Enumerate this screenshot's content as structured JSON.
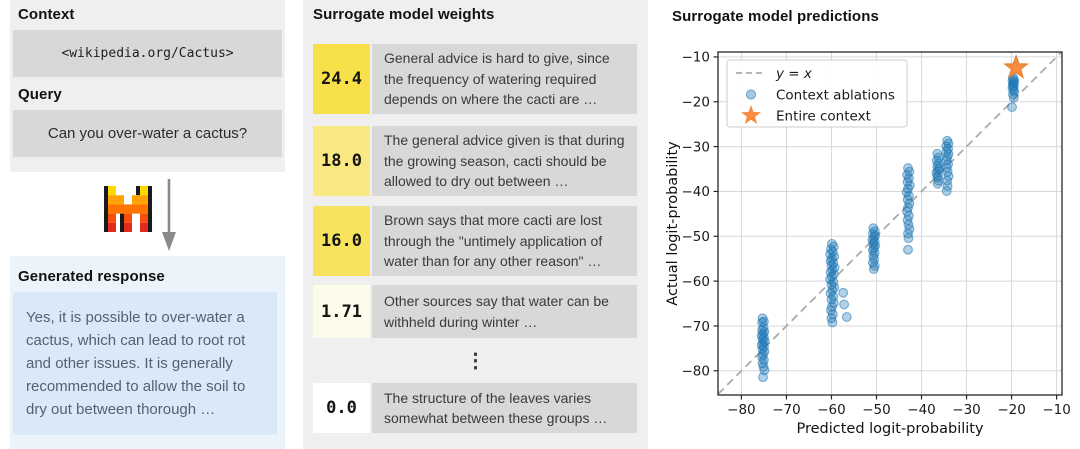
{
  "left": {
    "context_label": "Context",
    "context_value": "<wikipedia.org/Cactus>",
    "query_label": "Query",
    "query_value": "Can you over-water a cactus?",
    "generated_label": "Generated response",
    "generated_value": "Yes, it is possible to over-water a cactus, which can lead to root rot and other issues. It is generally recommended to allow the soil to dry out between thorough …"
  },
  "icons": {
    "model_icon": "mistral-pixel-m-logo",
    "flow_icon": "down-arrow"
  },
  "middle": {
    "title": "Surrogate model weights",
    "ellipsis": "⋮",
    "rows": [
      {
        "weight": "24.4",
        "color": "#f8e04a",
        "text": "General advice is hard to give, since the frequency of watering required depends on where the cacti are …"
      },
      {
        "weight": "18.0",
        "color": "#fae982",
        "text": "The general advice given is that during the growing season, cacti should be allowed to dry out between …"
      },
      {
        "weight": "16.0",
        "color": "#f8e35e",
        "text": "Brown says that more cacti are lost through the \"untimely application of water than for any other reason\" …"
      },
      {
        "weight": "1.71",
        "color": "#fdfbe9",
        "text": "Other sources say that water can be withheld during winter …"
      },
      {
        "weight": "0.0",
        "color": "#ffffff",
        "text": "The structure of the leaves varies somewhat between these groups …"
      }
    ]
  },
  "right": {
    "title": "Surrogate model predictions"
  },
  "colors": {
    "panel_gray": "#efefef",
    "box_gray": "#d8d8d8",
    "panel_blue": "#edf3fb",
    "box_blue": "#d9e9f8",
    "scatter_blue": "#1f77b4",
    "star_orange": "#f78c3e",
    "identity_gray": "#ababab",
    "grid_gray": "#d8d8d8"
  },
  "chart_data": {
    "type": "scatter",
    "title": "Surrogate model predictions",
    "xlabel": "Predicted logit-probability",
    "ylabel": "Actual logit-probability",
    "xlim": [
      -85.2,
      -8.8
    ],
    "ylim": [
      -85.4,
      -8.9
    ],
    "xticks": [
      -80,
      -70,
      -60,
      -50,
      -40,
      -30,
      -20,
      -10
    ],
    "yticks": [
      -10,
      -20,
      -30,
      -40,
      -50,
      -60,
      -70,
      -80
    ],
    "grid": true,
    "identity_line": true,
    "legend": {
      "position": "upper left",
      "entries": [
        {
          "label": "y = x",
          "marker": "dashed-line",
          "color": "#ababab"
        },
        {
          "label": "Context ablations",
          "marker": "circle",
          "color": "#1f77b4"
        },
        {
          "label": "Entire context",
          "marker": "star",
          "color": "#f78c3e"
        }
      ]
    },
    "series": [
      {
        "name": "Context ablations",
        "marker": "circle",
        "color": "#1f77b4",
        "alpha": 0.35,
        "points": [
          [
            -75.3,
            -68.3
          ],
          [
            -75.0,
            -69.0
          ],
          [
            -75.4,
            -69.2
          ],
          [
            -75.1,
            -70.4
          ],
          [
            -75.4,
            -70.9
          ],
          [
            -74.9,
            -71.3
          ],
          [
            -75.2,
            -71.7
          ],
          [
            -75.5,
            -72.2
          ],
          [
            -75.0,
            -72.6
          ],
          [
            -75.3,
            -73.0
          ],
          [
            -74.8,
            -73.4
          ],
          [
            -75.2,
            -73.8
          ],
          [
            -75.5,
            -74.3
          ],
          [
            -75.0,
            -74.7
          ],
          [
            -75.3,
            -75.2
          ],
          [
            -74.9,
            -75.7
          ],
          [
            -75.2,
            -76.3
          ],
          [
            -75.4,
            -76.9
          ],
          [
            -75.0,
            -77.6
          ],
          [
            -75.3,
            -78.3
          ],
          [
            -75.1,
            -79.1
          ],
          [
            -74.9,
            -79.9
          ],
          [
            -75.2,
            -81.4
          ],
          [
            -59.9,
            -51.7
          ],
          [
            -59.5,
            -52.3
          ],
          [
            -60.1,
            -52.9
          ],
          [
            -59.7,
            -53.5
          ],
          [
            -60.3,
            -54.0
          ],
          [
            -59.4,
            -54.5
          ],
          [
            -59.9,
            -55.0
          ],
          [
            -60.2,
            -55.5
          ],
          [
            -59.6,
            -56.0
          ],
          [
            -60.0,
            -56.5
          ],
          [
            -59.3,
            -57.0
          ],
          [
            -59.8,
            -57.5
          ],
          [
            -60.2,
            -58.0
          ],
          [
            -59.5,
            -58.5
          ],
          [
            -59.9,
            -59.0
          ],
          [
            -60.3,
            -59.6
          ],
          [
            -59.6,
            -60.2
          ],
          [
            -60.0,
            -60.8
          ],
          [
            -59.4,
            -61.4
          ],
          [
            -59.8,
            -62.0
          ],
          [
            -60.2,
            -62.7
          ],
          [
            -59.6,
            -63.4
          ],
          [
            -60.0,
            -64.1
          ],
          [
            -59.5,
            -64.9
          ],
          [
            -59.9,
            -65.7
          ],
          [
            -60.1,
            -66.5
          ],
          [
            -59.7,
            -67.4
          ],
          [
            -60.0,
            -68.3
          ],
          [
            -59.8,
            -69.2
          ],
          [
            -57.4,
            -62.6
          ],
          [
            -57.2,
            -65.2
          ],
          [
            -56.6,
            -68.0
          ],
          [
            -50.7,
            -48.2
          ],
          [
            -50.4,
            -48.9
          ],
          [
            -50.8,
            -49.4
          ],
          [
            -50.3,
            -49.9
          ],
          [
            -50.6,
            -50.3
          ],
          [
            -50.9,
            -50.8
          ],
          [
            -50.4,
            -51.2
          ],
          [
            -50.7,
            -51.6
          ],
          [
            -50.3,
            -52.1
          ],
          [
            -50.6,
            -52.6
          ],
          [
            -50.8,
            -53.1
          ],
          [
            -50.4,
            -53.7
          ],
          [
            -50.7,
            -54.4
          ],
          [
            -50.5,
            -55.1
          ],
          [
            -50.8,
            -55.9
          ],
          [
            -50.4,
            -56.6
          ],
          [
            -50.6,
            -57.3
          ],
          [
            -43.0,
            -34.8
          ],
          [
            -42.7,
            -35.6
          ],
          [
            -43.2,
            -36.3
          ],
          [
            -42.8,
            -37.1
          ],
          [
            -43.1,
            -37.9
          ],
          [
            -42.6,
            -38.6
          ],
          [
            -43.0,
            -39.4
          ],
          [
            -43.3,
            -40.2
          ],
          [
            -42.8,
            -41.0
          ],
          [
            -43.1,
            -41.8
          ],
          [
            -42.7,
            -42.7
          ],
          [
            -43.0,
            -43.6
          ],
          [
            -43.2,
            -44.5
          ],
          [
            -42.8,
            -45.4
          ],
          [
            -43.1,
            -46.4
          ],
          [
            -42.9,
            -47.4
          ],
          [
            -42.7,
            -48.4
          ],
          [
            -43.0,
            -49.4
          ],
          [
            -42.9,
            -50.4
          ],
          [
            -43.0,
            -53.0
          ],
          [
            -36.5,
            -31.6
          ],
          [
            -36.2,
            -32.4
          ],
          [
            -36.6,
            -33.1
          ],
          [
            -36.3,
            -33.8
          ],
          [
            -36.5,
            -34.4
          ],
          [
            -36.1,
            -34.9
          ],
          [
            -36.4,
            -35.4
          ],
          [
            -36.7,
            -35.9
          ],
          [
            -36.3,
            -36.4
          ],
          [
            -36.5,
            -36.9
          ],
          [
            -36.2,
            -37.6
          ],
          [
            -36.4,
            -38.3
          ],
          [
            -34.3,
            -28.7
          ],
          [
            -34.0,
            -29.3
          ],
          [
            -34.5,
            -29.9
          ],
          [
            -34.1,
            -30.5
          ],
          [
            -34.4,
            -31.1
          ],
          [
            -34.0,
            -31.7
          ],
          [
            -34.3,
            -32.4
          ],
          [
            -34.5,
            -33.1
          ],
          [
            -34.1,
            -33.9
          ],
          [
            -34.4,
            -34.7
          ],
          [
            -34.2,
            -35.6
          ],
          [
            -34.0,
            -36.6
          ],
          [
            -34.3,
            -37.6
          ],
          [
            -34.2,
            -38.8
          ],
          [
            -34.4,
            -39.9
          ],
          [
            -19.7,
            -14.6
          ],
          [
            -19.5,
            -15.0
          ],
          [
            -19.8,
            -15.3
          ],
          [
            -19.4,
            -15.6
          ],
          [
            -19.6,
            -15.9
          ],
          [
            -19.7,
            -16.2
          ],
          [
            -19.5,
            -16.5
          ],
          [
            -19.8,
            -16.9
          ],
          [
            -19.6,
            -17.3
          ],
          [
            -19.4,
            -17.7
          ],
          [
            -19.7,
            -18.3
          ],
          [
            -19.5,
            -19.1
          ],
          [
            -19.9,
            -21.2
          ]
        ]
      },
      {
        "name": "Entire context",
        "marker": "star",
        "color": "#f78c3e",
        "points": [
          [
            -19.0,
            -12.4
          ]
        ]
      }
    ]
  }
}
